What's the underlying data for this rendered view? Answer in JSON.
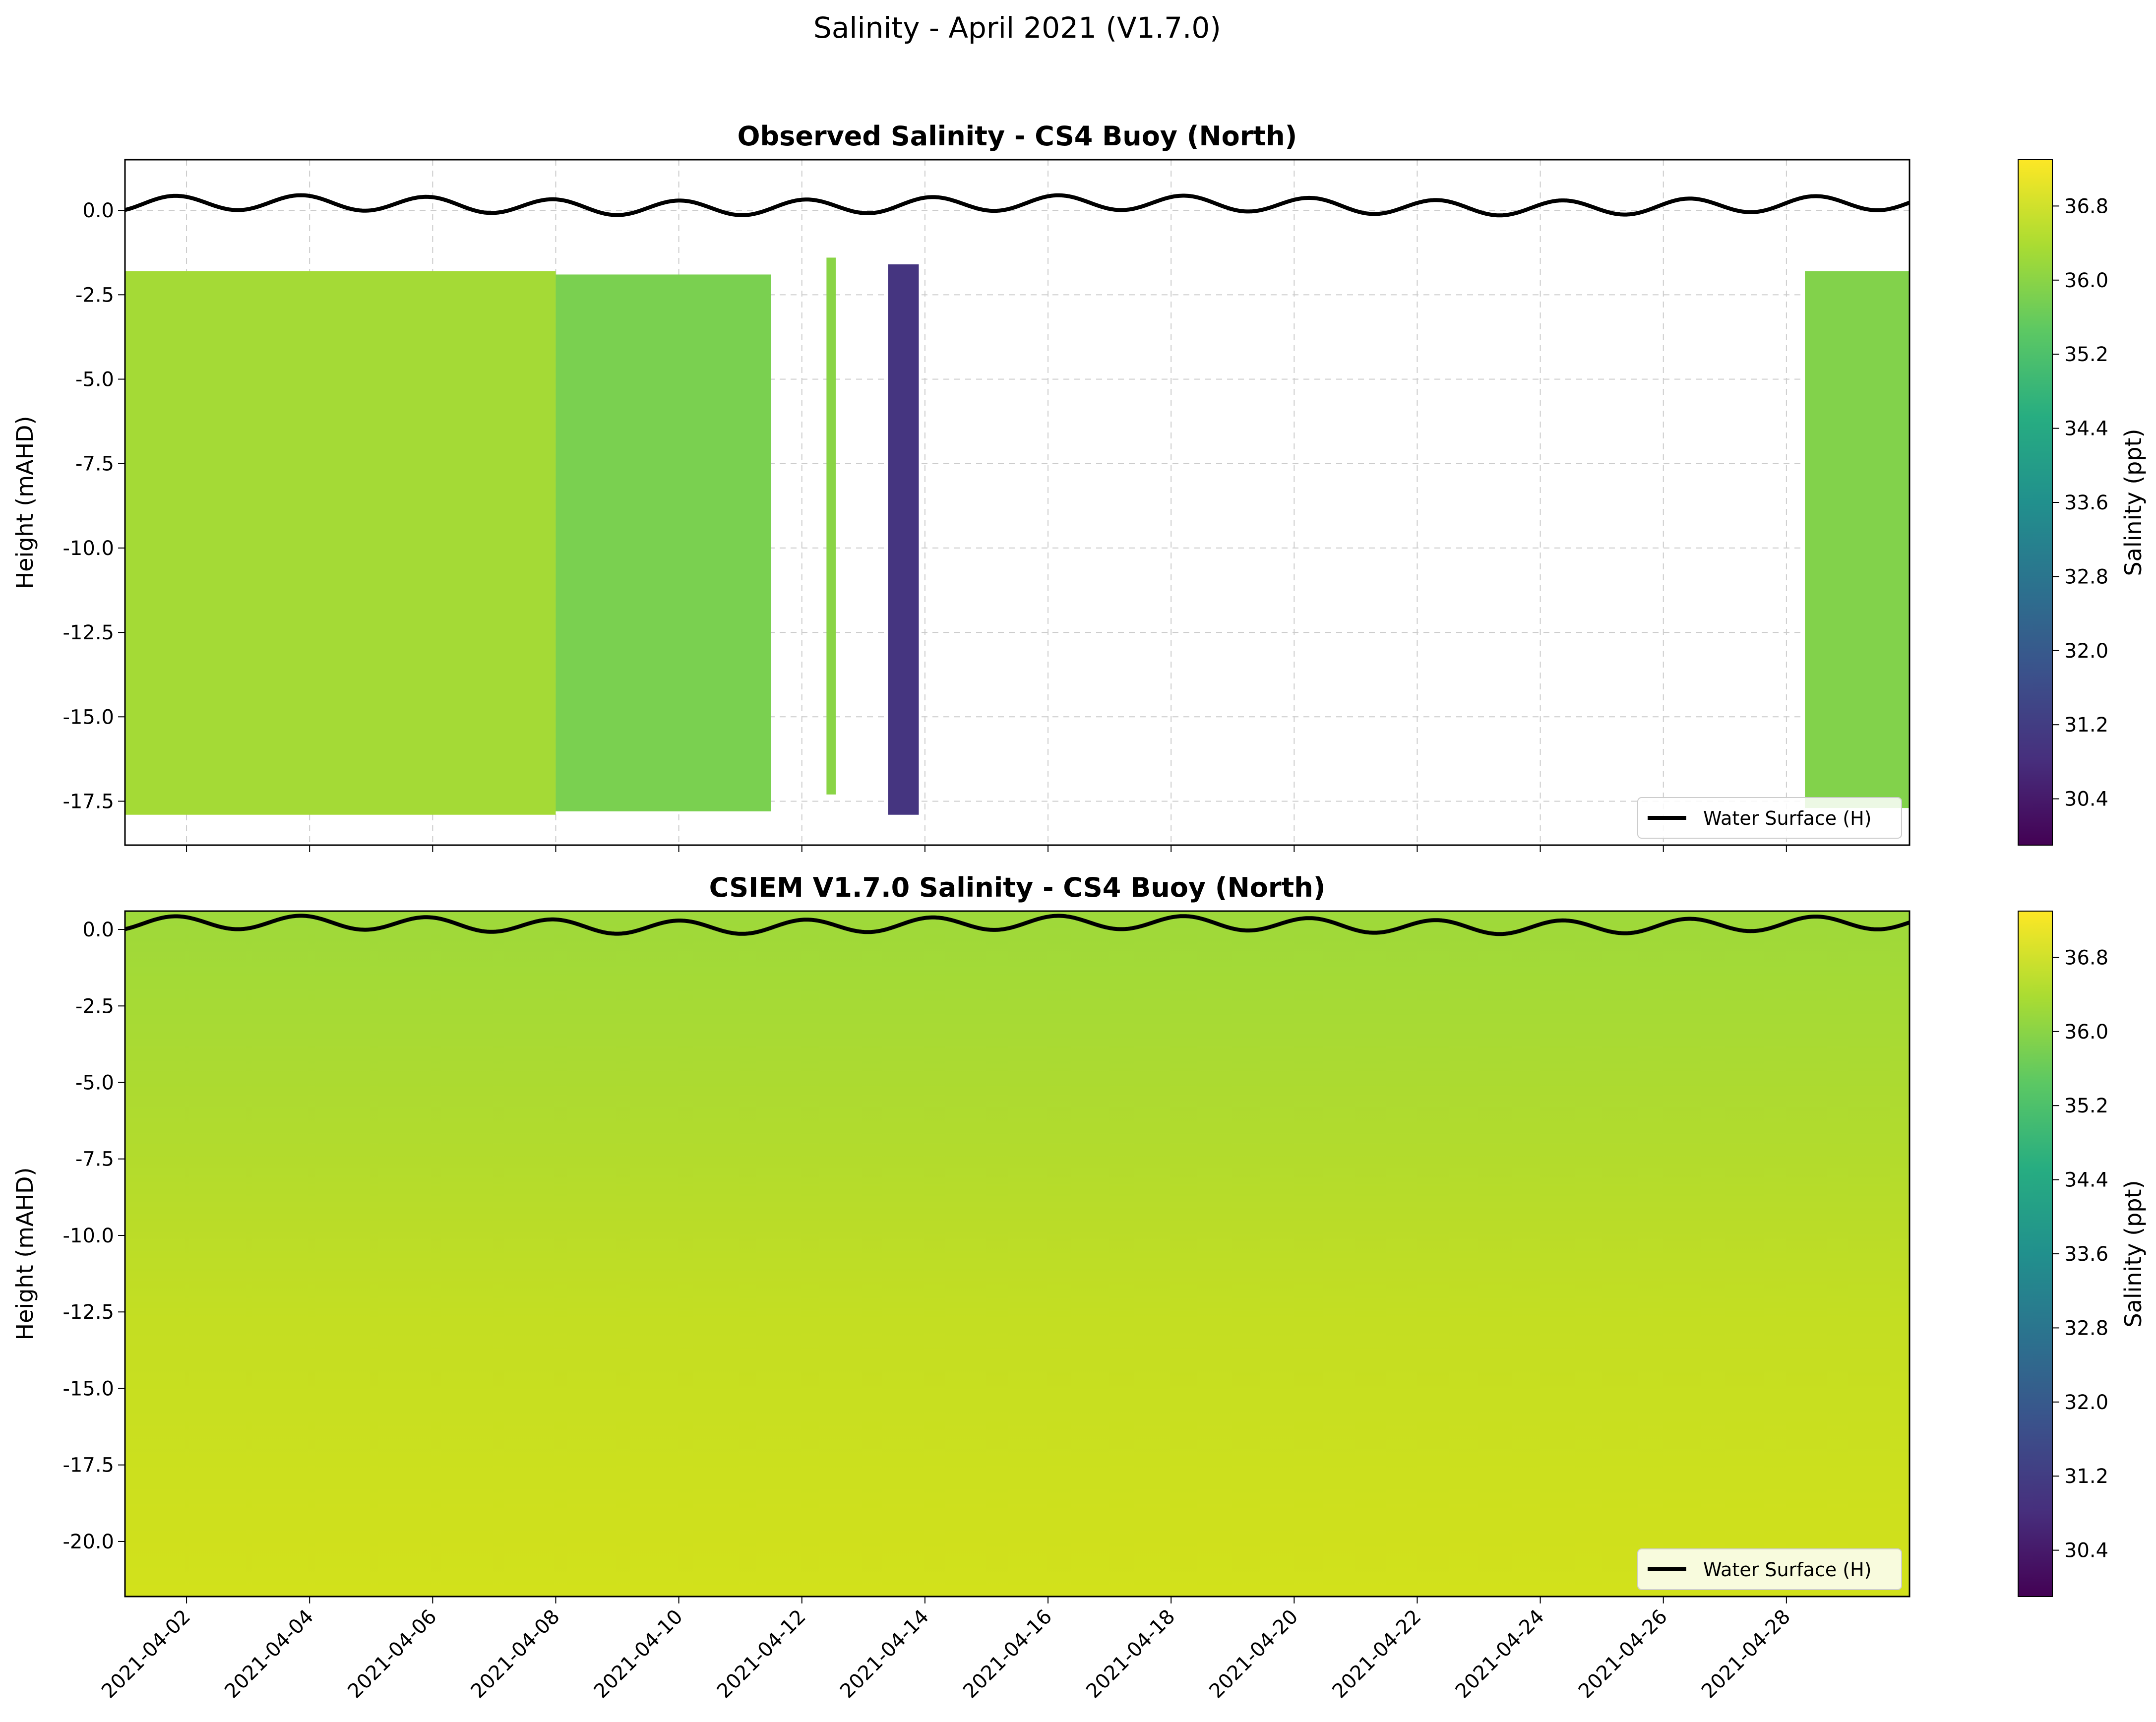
{
  "figure_title": "Salinity - April 2021 (V1.7.0)",
  "legend_label": "Water Surface (H)",
  "colorbar_label": "Salinity (ppt)",
  "colorbar_ticks": [
    "30.4",
    "31.2",
    "32.0",
    "32.8",
    "33.6",
    "34.4",
    "35.2",
    "36.0",
    "36.8"
  ],
  "colors": {
    "surface_line": "#000000",
    "grid": "#cccccc",
    "colormap": "viridis"
  },
  "chart_data": [
    {
      "type": "heatmap",
      "title": "Observed Salinity - CS4 Buoy (North)",
      "xlabel": "",
      "ylabel": "Height (mAHD)",
      "xlim": [
        "2021-04-01",
        "2021-04-30"
      ],
      "ylim": [
        -18.8,
        1.5
      ],
      "yticks": [
        "0.0",
        "-2.5",
        "-5.0",
        "-7.5",
        "-10.0",
        "-12.5",
        "-15.0",
        "-17.5"
      ],
      "x_tick_labels_shown": false,
      "color_range": [
        29.9,
        37.3
      ],
      "grid": true,
      "legend_position": "lower-right",
      "data_segments": [
        {
          "start": "2021-04-01",
          "end": "2021-04-08",
          "top": -1.8,
          "bottom": -17.9,
          "salinity": 36.3
        },
        {
          "start": "2021-04-08",
          "end": "2021-04-11.5",
          "top": -1.9,
          "bottom": -17.8,
          "salinity": 35.8
        },
        {
          "start": "2021-04-12.4",
          "end": "2021-04-12.55",
          "top": -1.4,
          "bottom": -17.3,
          "salinity": 36.0
        },
        {
          "start": "2021-04-13.4",
          "end": "2021-04-13.9",
          "top": -1.6,
          "bottom": -17.9,
          "salinity": 31.0
        },
        {
          "start": "2021-04-28.3",
          "end": "2021-04-30",
          "top": -1.8,
          "bottom": -17.7,
          "salinity": 35.9
        }
      ]
    },
    {
      "type": "heatmap",
      "title": "CSIEM V1.7.0 Salinity - CS4 Buoy (North)",
      "xlabel": "",
      "ylabel": "Height (mAHD)",
      "xlim": [
        "2021-04-01",
        "2021-04-30"
      ],
      "ylim": [
        -21.8,
        0.6
      ],
      "yticks": [
        "0.0",
        "-2.5",
        "-5.0",
        "-7.5",
        "-10.0",
        "-12.5",
        "-15.0",
        "-17.5",
        "-20.0"
      ],
      "x_tick_labels": [
        "2021-04-02",
        "2021-04-04",
        "2021-04-06",
        "2021-04-08",
        "2021-04-10",
        "2021-04-12",
        "2021-04-14",
        "2021-04-16",
        "2021-04-18",
        "2021-04-20",
        "2021-04-22",
        "2021-04-24",
        "2021-04-26",
        "2021-04-28"
      ],
      "color_range": [
        29.9,
        37.3
      ],
      "grid": false,
      "legend_position": "lower-right",
      "surface_salinity": 36.0,
      "bottom_salinity": 36.7
    }
  ]
}
